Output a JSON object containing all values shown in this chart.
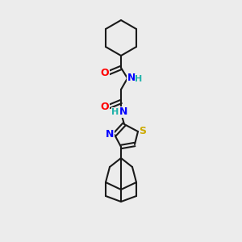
{
  "background_color": "#ececec",
  "bond_color": "#1a1a1a",
  "atom_colors": {
    "O": "#ff0000",
    "N": "#0000ff",
    "S": "#ccaa00",
    "H": "#20b2aa",
    "C": "#1a1a1a"
  },
  "figsize": [
    3.0,
    3.0
  ],
  "dpi": 100
}
